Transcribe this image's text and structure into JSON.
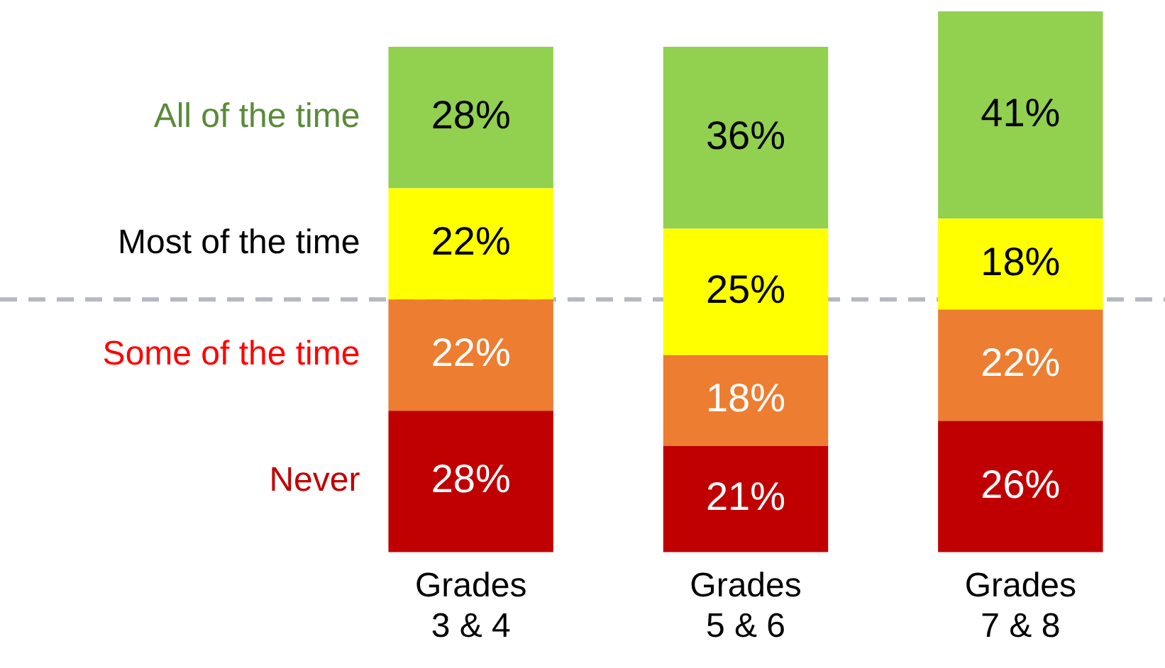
{
  "chart_data": {
    "type": "bar",
    "stacked": true,
    "categories": [
      "Grades 3 & 4",
      "Grades 5 & 6",
      "Grades 7 & 8"
    ],
    "series": [
      {
        "name": "Never",
        "color": "#c00000",
        "values": [
          28,
          21,
          26
        ],
        "value_labels": [
          "28%",
          "21%",
          "26%"
        ]
      },
      {
        "name": "Some of the time",
        "color": "#ed7d31",
        "values": [
          22,
          18,
          22
        ],
        "value_labels": [
          "22%",
          "18%",
          "22%"
        ]
      },
      {
        "name": "Most of the time",
        "color": "#ffff00",
        "values": [
          22,
          25,
          18
        ],
        "value_labels": [
          "22%",
          "25%",
          "18%"
        ]
      },
      {
        "name": "All of the time",
        "color": "#92d050",
        "values": [
          28,
          36,
          41
        ],
        "value_labels": [
          "28%",
          "36%",
          "41%"
        ]
      }
    ],
    "tick_labels": "x",
    "grid": false,
    "legend": false,
    "ref_lines": [
      {
        "axis": "y",
        "value": 50,
        "color": "#b4b8c0",
        "line_style": "dashed"
      }
    ]
  }
}
